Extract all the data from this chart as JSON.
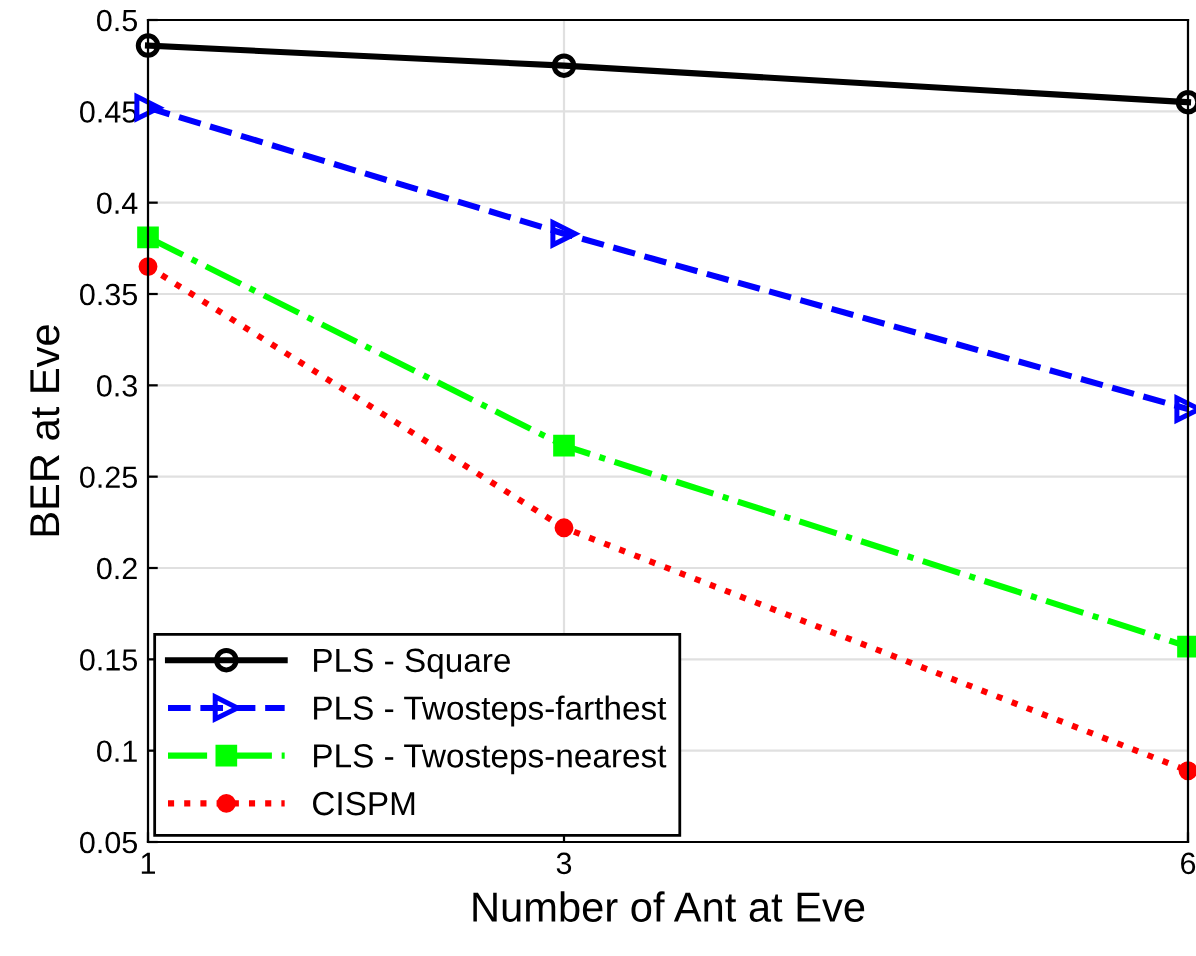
{
  "chart_data": {
    "type": "line",
    "xlabel": "Number of Ant at Eve",
    "ylabel": "BER at Eve",
    "x": [
      1,
      3,
      6
    ],
    "xlim": [
      1,
      6
    ],
    "xticks": [
      1,
      3,
      6
    ],
    "ylim": [
      0.05,
      0.5
    ],
    "yticks": [
      0.05,
      0.1,
      0.15,
      0.2,
      0.25,
      0.3,
      0.35,
      0.4,
      0.45,
      0.5
    ],
    "grid": true,
    "legend": "bottom left",
    "series": [
      {
        "name": "PLS - Square",
        "color": "#000000",
        "marker": "circle",
        "line_style": "solid",
        "values": [
          0.486,
          0.475,
          0.455
        ]
      },
      {
        "name": "PLS - Twosteps-farthest",
        "color": "#0000ff",
        "marker": "triangle",
        "line_style": "dashed",
        "values": [
          0.452,
          0.383,
          0.287
        ]
      },
      {
        "name": "PLS - Twosteps-nearest",
        "color": "#00ff00",
        "marker": "square",
        "line_style": "dashdot",
        "values": [
          0.381,
          0.267,
          0.157
        ]
      },
      {
        "name": "CISPM",
        "color": "#ff0000",
        "marker": "dot",
        "line_style": "dotted",
        "values": [
          0.365,
          0.222,
          0.089
        ]
      }
    ]
  }
}
